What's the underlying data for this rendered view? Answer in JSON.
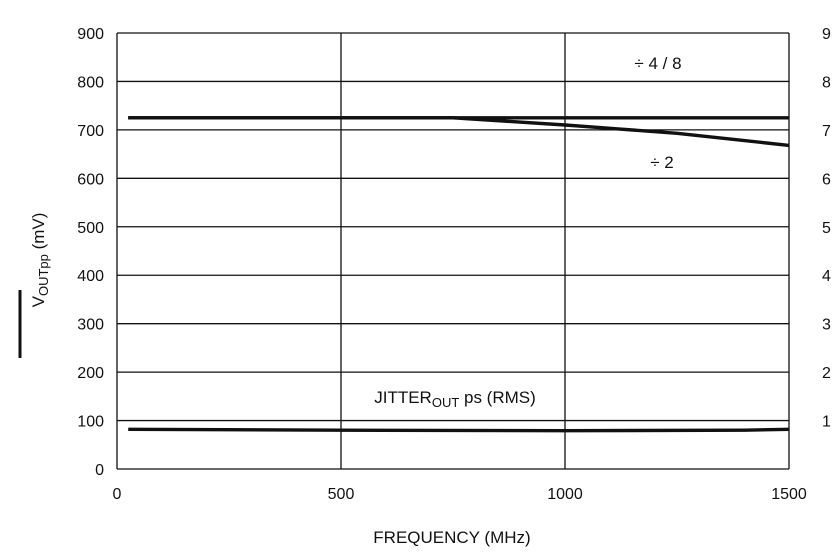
{
  "chart_data": {
    "type": "line",
    "xlabel": "FREQUENCY (MHz)",
    "ylabel_prefix": "V",
    "ylabel_sub": "OUTpp",
    "ylabel_suffix": " (mV)",
    "x_ticks": [
      "0",
      "500",
      "1000",
      "1500"
    ],
    "y_ticks": [
      "0",
      "100",
      "200",
      "300",
      "400",
      "500",
      "600",
      "700",
      "800",
      "900"
    ],
    "right_ticks": [
      "1",
      "2",
      "3",
      "4",
      "5",
      "6",
      "7",
      "8",
      "9"
    ],
    "xlim": [
      0,
      1500
    ],
    "ylim": [
      0,
      900
    ],
    "grid": true,
    "series": [
      {
        "name": "÷ 4 / 8",
        "x": [
          25,
          750,
          1000,
          1500
        ],
        "y": [
          725,
          725,
          725,
          725
        ]
      },
      {
        "name": "÷ 2",
        "x": [
          25,
          750,
          1000,
          1250,
          1500
        ],
        "y": [
          725,
          725,
          710,
          693,
          668
        ]
      },
      {
        "name": "JITTER_OUT ps (RMS)",
        "x": [
          25,
          500,
          1000,
          1400,
          1500
        ],
        "y": [
          82,
          80,
          79,
          80,
          82
        ]
      }
    ],
    "annotations": {
      "div48": "÷ 4 / 8",
      "div2": "÷ 2",
      "jitter_prefix": "JITTER",
      "jitter_sub": "OUT",
      "jitter_suffix": " ps (RMS)"
    }
  }
}
